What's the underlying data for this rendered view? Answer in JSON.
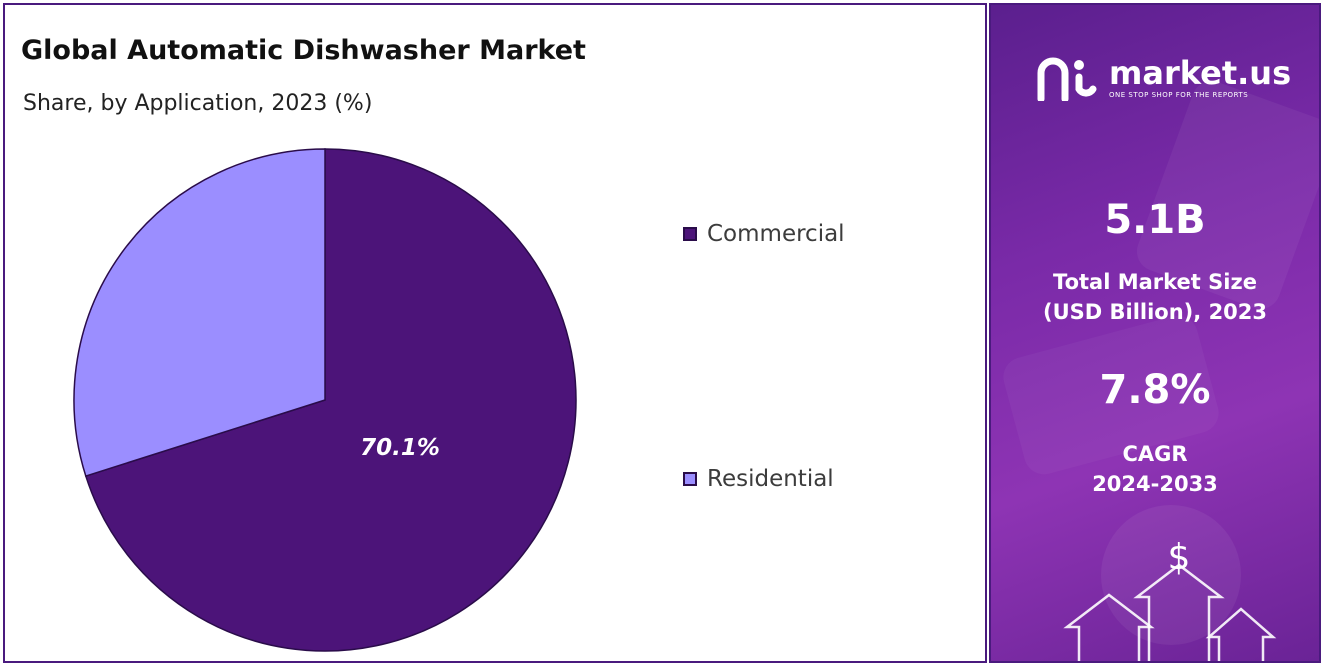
{
  "chart_data": {
    "type": "pie",
    "title": "Global Automatic Dishwasher Market",
    "subtitle": "Share, by Application, 2023 (%)",
    "categories": [
      "Commercial",
      "Residential"
    ],
    "values": [
      70.1,
      29.9
    ],
    "data_labels": [
      "70.1%",
      ""
    ],
    "colors": [
      "#4c1479",
      "#9b8eff"
    ],
    "legend_position": "right"
  },
  "sidebar": {
    "logo_name": "market.us",
    "logo_tagline": "ONE STOP SHOP FOR THE REPORTS",
    "market_size_value": "5.1B",
    "market_size_label_line1": "Total Market Size",
    "market_size_label_line2": "(USD Billion), 2023",
    "cagr_value": "7.8%",
    "cagr_label_line1": "CAGR",
    "cagr_label_line2": "2024-2033",
    "dollar_symbol": "$",
    "icons": [
      "market-us-logo-icon",
      "dollar-arrows-icon"
    ]
  }
}
